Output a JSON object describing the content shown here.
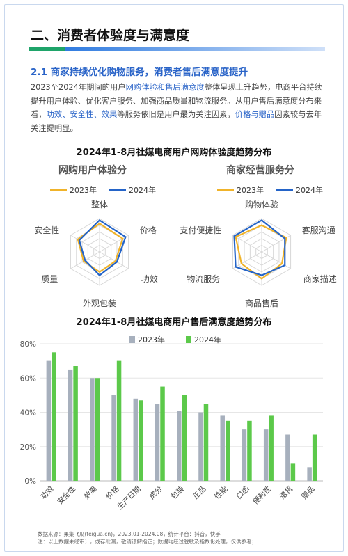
{
  "section_title": "二、消费者体验度与满意度",
  "subsection_title": "2.1 商家持续优化购物服务，消费者售后满意度提升",
  "paragraph": {
    "p1": "2023至2024年期间的用户",
    "hl1": "网购体验和售后满意度",
    "p2": "整体呈现上升趋势，电商平台持续提升用户体验、优化客户服务、加强商品质量和物流服务。从用户售后满意度分布来看，",
    "hl2": "功效、安全性、效果",
    "p3": "等服务依旧是用户最为关注因素，",
    "hl3": "价格与赠品",
    "p4": "因素较与去年关注提明显。"
  },
  "radar_section_title": "2024年1-8月社媒电商用户网购体验度趋势分布",
  "bar_section_title": "2024年1-8月社媒电商用户售后满意度趋势分布",
  "colors": {
    "y2023": "#f0b32a",
    "y2024": "#2464c8",
    "bar2023": "#a7b0bd",
    "bar2024": "#5cc94a"
  },
  "chart_data": [
    {
      "type": "radar",
      "title": "网购用户体验分",
      "axes": [
        "整体",
        "价格",
        "功效",
        "外观包装",
        "质量",
        "安全性"
      ],
      "series": [
        {
          "name": "2023年",
          "values": [
            0.85,
            0.8,
            0.55,
            0.6,
            0.55,
            0.75
          ]
        },
        {
          "name": "2024年",
          "values": [
            0.95,
            0.9,
            0.6,
            0.7,
            0.5,
            0.7
          ]
        }
      ]
    },
    {
      "type": "radar",
      "title": "商家经营服务分",
      "axes": [
        "购物体验",
        "客服沟通",
        "商家描述",
        "商品售后",
        "物流服务",
        "支付便捷性"
      ],
      "series": [
        {
          "name": "2023年",
          "values": [
            0.8,
            0.85,
            0.7,
            0.8,
            0.7,
            0.9
          ]
        },
        {
          "name": "2024年",
          "values": [
            0.95,
            0.8,
            0.8,
            0.7,
            0.9,
            0.95
          ]
        }
      ]
    },
    {
      "type": "bar",
      "categories": [
        "功效",
        "安全性",
        "效果",
        "价格",
        "生产日期",
        "成分",
        "包装",
        "正品",
        "性能",
        "口感",
        "便利性",
        "退货",
        "赠品"
      ],
      "series": [
        {
          "name": "2023年",
          "values": [
            70,
            65,
            60,
            50,
            48,
            45,
            41,
            40,
            38,
            30,
            30,
            27,
            8
          ]
        },
        {
          "name": "2024年",
          "values": [
            75,
            67,
            60,
            70,
            47,
            55,
            50,
            45,
            35,
            35,
            38,
            10,
            27
          ]
        }
      ],
      "yticks": [
        "0%",
        "20%",
        "40%",
        "60%",
        "80%"
      ],
      "ylim": [
        0,
        80
      ]
    }
  ],
  "footer": {
    "line1": "数据来源：果集飞瓜(feigua.cn)，2023.01-2024.08，统计平台：抖音，快手",
    "line2": "注：以上数据未经审计，或存纰漏，敬请谅解指正；数据均经过脱敏及指数化处理，仅供参考；"
  }
}
